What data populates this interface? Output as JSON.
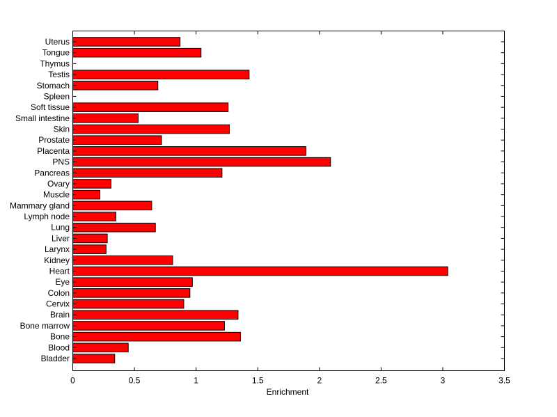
{
  "chart_data": {
    "type": "bar",
    "orientation": "horizontal",
    "title": "",
    "xlabel": "Enrichment",
    "ylabel": "",
    "xlim": [
      0,
      3.5
    ],
    "xticks": [
      "0",
      "0.5",
      "1",
      "1.5",
      "2",
      "2.5",
      "3",
      "3.5"
    ],
    "grid": false,
    "bar_color": "#ff0000",
    "categories": [
      "Uterus",
      "Tongue",
      "Thymus",
      "Testis",
      "Stomach",
      "Spleen",
      "Soft tissue",
      "Small intestine",
      "Skin",
      "Prostate",
      "Placenta",
      "PNS",
      "Pancreas",
      "Ovary",
      "Muscle",
      "Mammary gland",
      "Lymph node",
      "Lung",
      "Liver",
      "Larynx",
      "Kidney",
      "Heart",
      "Eye",
      "Colon",
      "Cervix",
      "Brain",
      "Bone marrow",
      "Bone",
      "Blood",
      "Bladder"
    ],
    "values": [
      0.87,
      1.04,
      0,
      1.43,
      0.69,
      0,
      1.26,
      0.53,
      1.27,
      0.72,
      1.89,
      2.09,
      1.21,
      0.31,
      0.22,
      0.64,
      0.35,
      0.67,
      0.28,
      0.27,
      0.81,
      3.04,
      0.97,
      0.95,
      0.9,
      1.34,
      1.23,
      1.36,
      0.45,
      0.34
    ]
  }
}
